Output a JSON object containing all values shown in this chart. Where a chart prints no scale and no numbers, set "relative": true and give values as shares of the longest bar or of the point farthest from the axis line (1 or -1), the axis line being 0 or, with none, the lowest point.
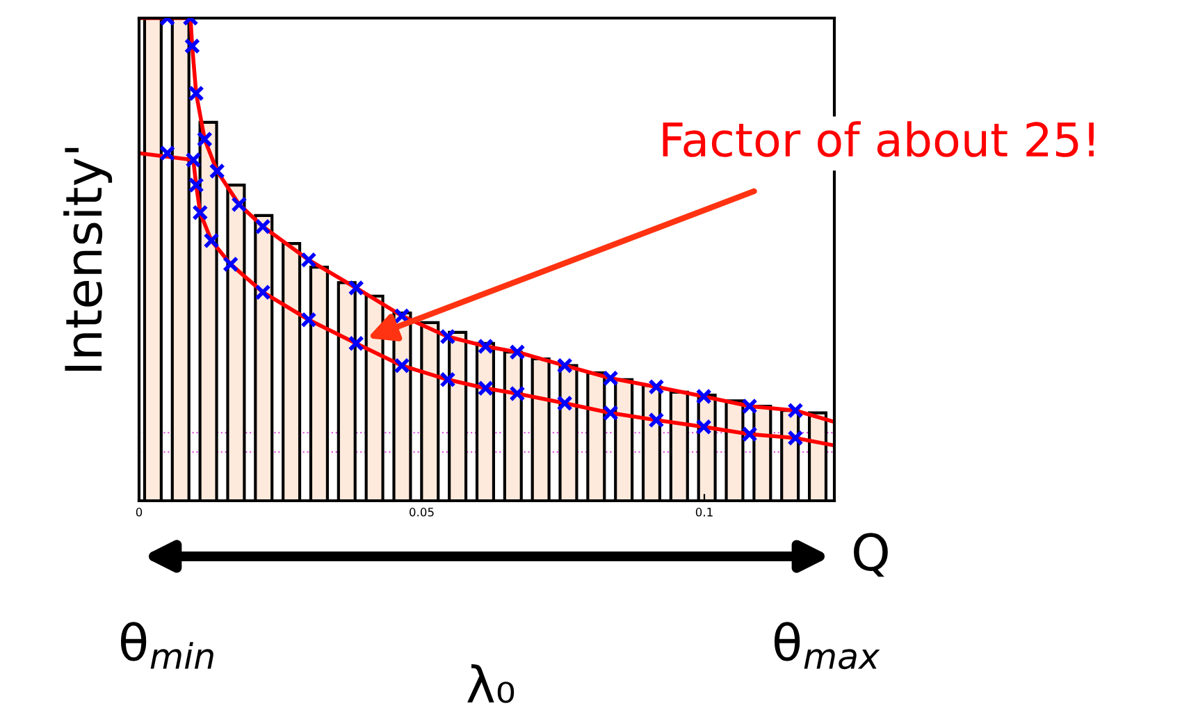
{
  "chart_data": {
    "type": "histogram",
    "relative": true,
    "ylabel": "Intensity'",
    "xlabel": "Q",
    "xlim": [
      0,
      0.123
    ],
    "xticks": [
      0,
      0.05,
      0.1
    ],
    "grid": false,
    "color": "#fdeadc",
    "bins": [
      0,
      0.0049,
      0.0098,
      0.0147,
      0.0196,
      0.0245,
      0.0294,
      0.0343,
      0.0392,
      0.0441,
      0.049,
      0.0539,
      0.0588,
      0.0637,
      0.0686,
      0.0735,
      0.0784,
      0.0833,
      0.0882,
      0.0931,
      0.098,
      0.1029,
      0.1078,
      0.1127,
      0.1176,
      0.1225
    ],
    "values": [
      1.0,
      1.0,
      0.784,
      0.654,
      0.591,
      0.533,
      0.484,
      0.452,
      0.424,
      0.389,
      0.369,
      0.349,
      0.326,
      0.308,
      0.294,
      0.28,
      0.265,
      0.251,
      0.239,
      0.225,
      0.219,
      0.207,
      0.196,
      0.187,
      0.182
    ],
    "series": [
      {
        "type": "line",
        "color": "#ff0000",
        "marker": "none",
        "line_style": "solid",
        "x": [
          0,
          0.0091,
          0.0094,
          0.0101,
          0.0116,
          0.0138,
          0.0177,
          0.0219,
          0.03,
          0.0384,
          0.0465,
          0.0546,
          0.0613,
          0.0669,
          0.0753,
          0.0834,
          0.0915,
          0.0999,
          0.108,
          0.1161,
          0.1228
        ],
        "values": [
          1.0,
          1.0,
          0.942,
          0.844,
          0.749,
          0.683,
          0.614,
          0.568,
          0.499,
          0.441,
          0.383,
          0.34,
          0.32,
          0.308,
          0.28,
          0.254,
          0.236,
          0.216,
          0.196,
          0.187,
          0.164
        ]
      },
      {
        "type": "line",
        "color": "#ff0000",
        "marker": "none",
        "line_style": "solid",
        "x": [
          0,
          0.0096,
          0.0101,
          0.0108,
          0.0128,
          0.0162,
          0.0219,
          0.03,
          0.0384,
          0.0465,
          0.0546,
          0.0613,
          0.0669,
          0.0753,
          0.0834,
          0.0915,
          0.0999,
          0.108,
          0.1161,
          0.1228
        ],
        "values": [
          0.72,
          0.706,
          0.654,
          0.597,
          0.539,
          0.49,
          0.432,
          0.375,
          0.326,
          0.28,
          0.251,
          0.233,
          0.222,
          0.202,
          0.182,
          0.167,
          0.153,
          0.138,
          0.13,
          0.115
        ]
      },
      {
        "type": "scatter",
        "color": "#0000ff",
        "marker": "cross",
        "x": [
          0.005,
          0.0091,
          0.0094,
          0.0101,
          0.0116,
          0.0138,
          0.0177,
          0.0219,
          0.03,
          0.0384,
          0.0465,
          0.0546,
          0.0613,
          0.0669,
          0.0753,
          0.0834,
          0.0915,
          0.0999,
          0.108,
          0.1161
        ],
        "values": [
          1.0,
          1.0,
          0.942,
          0.844,
          0.749,
          0.683,
          0.614,
          0.568,
          0.499,
          0.441,
          0.383,
          0.34,
          0.32,
          0.308,
          0.28,
          0.254,
          0.236,
          0.216,
          0.196,
          0.187
        ]
      },
      {
        "type": "scatter",
        "color": "#0000ff",
        "marker": "cross",
        "x": [
          0.005,
          0.0096,
          0.0101,
          0.0108,
          0.0128,
          0.0162,
          0.0219,
          0.03,
          0.0384,
          0.0465,
          0.0546,
          0.0613,
          0.0669,
          0.0753,
          0.0834,
          0.0915,
          0.0999,
          0.108,
          0.1161
        ],
        "values": [
          0.72,
          0.706,
          0.654,
          0.597,
          0.539,
          0.49,
          0.432,
          0.375,
          0.326,
          0.28,
          0.251,
          0.233,
          0.222,
          0.202,
          0.182,
          0.167,
          0.153,
          0.138,
          0.13
        ]
      }
    ],
    "ref_lines": [
      {
        "axis": "y",
        "value": 0.141,
        "color": "#e060e0",
        "line_style": "dotted"
      },
      {
        "axis": "y",
        "value": 0.101,
        "color": "#e060e0",
        "line_style": "dotted"
      }
    ],
    "annotations": [
      {
        "text": "Factor of about 25!",
        "x": 0.0404,
        "y": 0.337
      },
      "θ$_{min}$",
      "θ$_{max}$",
      "λ₀"
    ]
  }
}
